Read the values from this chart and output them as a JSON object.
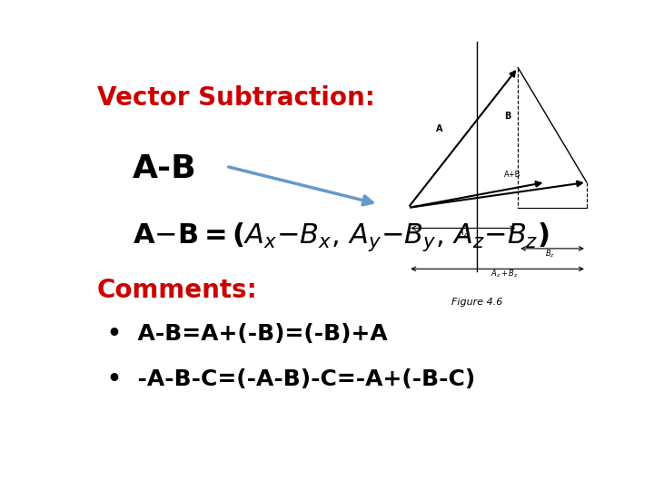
{
  "title": "Vector Subtraction:",
  "title_color": "#CC0000",
  "title_fontsize": 20,
  "title_bold": true,
  "ab_label": "A-B",
  "ab_label_fontsize": 26,
  "ab_label_bold": true,
  "ab_label_color": "#000000",
  "formula_color": "#000000",
  "formula_fontsize": 22,
  "comments_label": "Comments:",
  "comments_color": "#CC0000",
  "comments_fontsize": 20,
  "bullet1": "A-B=A+(-B)=(-B)+A",
  "bullet2": "-A-B-C=(-A-B)-C=-A+(-B-C)",
  "bullet_fontsize": 18,
  "bullet_color": "#000000",
  "bg_color": "#ffffff",
  "arrow_color": "#6699CC",
  "figure_caption": "Figure 4.6"
}
